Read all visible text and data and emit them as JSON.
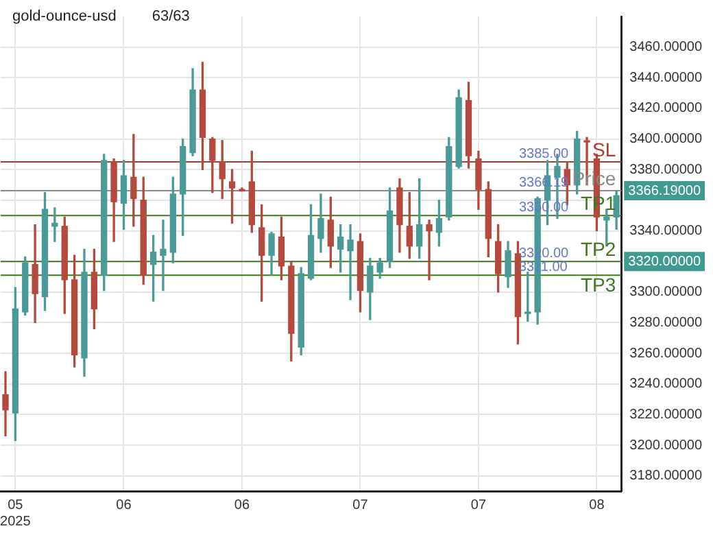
{
  "chart_data": {
    "type": "candlestick",
    "title": "gold-ounce-usd",
    "subtitle": "63/63",
    "categories": [
      null,
      "05\n2025",
      null,
      null,
      null,
      null,
      null,
      null,
      null,
      null,
      null,
      null,
      "06",
      null,
      null,
      null,
      null,
      null,
      null,
      null,
      null,
      null,
      null,
      null,
      "06",
      null,
      null,
      null,
      null,
      null,
      null,
      null,
      null,
      null,
      null,
      null,
      "07",
      null,
      null,
      null,
      null,
      null,
      null,
      null,
      null,
      null,
      null,
      null,
      "07",
      null,
      null,
      null,
      null,
      null,
      null,
      null,
      null,
      null,
      null,
      null,
      "08",
      null,
      null
    ],
    "ohlc": [
      [
        3233,
        3248,
        3206,
        3223
      ],
      [
        3221,
        3303,
        3203,
        3289
      ],
      [
        3287,
        3323,
        3285,
        3319
      ],
      [
        3318,
        3344,
        3280,
        3299
      ],
      [
        3297,
        3365,
        3288,
        3354
      ],
      [
        3343,
        3355,
        3333,
        3345
      ],
      [
        3343,
        3349,
        3286,
        3308
      ],
      [
        3308,
        3324,
        3251,
        3259
      ],
      [
        3257,
        3328,
        3245,
        3313
      ],
      [
        3313,
        3328,
        3276,
        3289
      ],
      [
        3311,
        3390,
        3301,
        3386
      ],
      [
        3385,
        3387,
        3333,
        3359
      ],
      [
        3358,
        3386,
        3341,
        3376
      ],
      [
        3375,
        3403,
        3343,
        3361
      ],
      [
        3360,
        3375,
        3305,
        3311
      ],
      [
        3318,
        3337,
        3294,
        3326
      ],
      [
        3324,
        3347,
        3301,
        3328
      ],
      [
        3326,
        3375,
        3319,
        3364
      ],
      [
        3364,
        3400,
        3337,
        3395
      ],
      [
        3391,
        3446,
        3389,
        3432
      ],
      [
        3432,
        3450,
        3380,
        3401
      ],
      [
        3400,
        3401,
        3365,
        3386
      ],
      [
        3385,
        3399,
        3361,
        3374
      ],
      [
        3372,
        3380,
        3345,
        3368
      ],
      [
        3367,
        3368,
        3366,
        3366
      ],
      [
        3372,
        3392,
        3339,
        3344
      ],
      [
        3342,
        3357,
        3294,
        3324
      ],
      [
        3324,
        3339,
        3311,
        3338
      ],
      [
        3336,
        3349,
        3308,
        3317
      ],
      [
        3317,
        3320,
        3255,
        3273
      ],
      [
        3264,
        3316,
        3259,
        3312
      ],
      [
        3309,
        3357,
        3308,
        3337
      ],
      [
        3335,
        3364,
        3326,
        3348
      ],
      [
        3347,
        3362,
        3316,
        3330
      ],
      [
        3328,
        3344,
        3313,
        3336
      ],
      [
        3327,
        3344,
        3295,
        3334
      ],
      [
        3333,
        3338,
        3287,
        3301
      ],
      [
        3300,
        3322,
        3282,
        3317
      ],
      [
        3313,
        3322,
        3309,
        3319
      ],
      [
        3320,
        3368,
        3316,
        3353
      ],
      [
        3368,
        3374,
        3326,
        3344
      ],
      [
        3343,
        3365,
        3322,
        3330
      ],
      [
        3330,
        3374,
        3322,
        3344
      ],
      [
        3344,
        3347,
        3308,
        3340
      ],
      [
        3339,
        3360,
        3330,
        3348
      ],
      [
        3349,
        3401,
        3347,
        3395
      ],
      [
        3382,
        3432,
        3381,
        3427
      ],
      [
        3425,
        3437,
        3381,
        3389
      ],
      [
        3387,
        3392,
        3354,
        3367
      ],
      [
        3367,
        3372,
        3323,
        3335
      ],
      [
        3333,
        3344,
        3300,
        3312
      ],
      [
        3310,
        3333,
        3303,
        3327
      ],
      [
        3325,
        3333,
        3266,
        3284
      ],
      [
        3286,
        3313,
        3281,
        3287
      ],
      [
        3287,
        3362,
        3279,
        3361
      ],
      [
        3360,
        3386,
        3344,
        3376
      ],
      [
        3375,
        3390,
        3348,
        3382
      ],
      [
        3380,
        3385,
        3357,
        3370
      ],
      [
        3370,
        3405,
        3364,
        3400
      ],
      [
        3398,
        3401,
        3370,
        3398
      ],
      [
        3387,
        3390,
        3340,
        3349
      ],
      [
        3347,
        3354,
        3330,
        3349
      ],
      [
        3349,
        3366,
        3341,
        3363
      ]
    ],
    "colors": [
      "#b4493d",
      "#4a9b97",
      "#4a9b97",
      "#b4493d",
      "#4a9b97",
      "#4a9b97",
      "#b4493d",
      "#b4493d",
      "#4a9b97",
      "#b4493d",
      "#4a9b97",
      "#b4493d",
      "#4a9b97",
      "#b4493d",
      "#b4493d",
      "#4a9b97",
      "#4a9b97",
      "#4a9b97",
      "#4a9b97",
      "#4a9b97",
      "#b4493d",
      "#b4493d",
      "#b4493d",
      "#b4493d",
      "#b4493d",
      "#b4493d",
      "#b4493d",
      "#4a9b97",
      "#b4493d",
      "#b4493d",
      "#4a9b97",
      "#4a9b97",
      "#4a9b97",
      "#b4493d",
      "#4a9b97",
      "#4a9b97",
      "#b4493d",
      "#4a9b97",
      "#4a9b97",
      "#4a9b97",
      "#b4493d",
      "#b4493d",
      "#4a9b97",
      "#b4493d",
      "#4a9b97",
      "#4a9b97",
      "#4a9b97",
      "#b4493d",
      "#b4493d",
      "#b4493d",
      "#b4493d",
      "#4a9b97",
      "#b4493d",
      "#4a9b97",
      "#4a9b97",
      "#4a9b97",
      "#4a9b97",
      "#b4493d",
      "#4a9b97",
      "#b4493d",
      "#b4493d",
      "#4a9b97",
      "#4a9b97"
    ],
    "ylim": [
      3170,
      3480
    ],
    "yticks": [
      {
        "value": 3180,
        "label": "3180.00000"
      },
      {
        "value": 3200,
        "label": "3200.00000"
      },
      {
        "value": 3220,
        "label": "3220.00000"
      },
      {
        "value": 3240,
        "label": "3240.00000"
      },
      {
        "value": 3260,
        "label": "3260.00000"
      },
      {
        "value": 3280,
        "label": "3280.00000"
      },
      {
        "value": 3300,
        "label": "3300.00000"
      },
      {
        "value": 3320,
        "label": "3320.00000"
      },
      {
        "value": 3340,
        "label": "3340.00000"
      },
      {
        "value": 3360,
        "label": null
      },
      {
        "value": 3366.19,
        "label": "3366.19000"
      },
      {
        "value": 3380,
        "label": "3380.00000"
      },
      {
        "value": 3400,
        "label": "3400.00000"
      },
      {
        "value": 3420,
        "label": "3420.00000"
      },
      {
        "value": 3440,
        "label": "3440.00000"
      },
      {
        "value": 3460,
        "label": "3460.00000"
      }
    ],
    "ref_lines": [
      {
        "axis": "y",
        "value": 3385,
        "label": "SL",
        "color": "#b03a2e"
      },
      {
        "axis": "y",
        "value": 3366.19,
        "label": "Price",
        "color": "#8a8a8a"
      },
      {
        "axis": "y",
        "value": 3350,
        "label": "TP1",
        "color": "#3d7a1e"
      },
      {
        "axis": "y",
        "value": 3320,
        "label": "TP2",
        "color": "#3d7a1e"
      },
      {
        "axis": "y",
        "value": 3311,
        "label": "TP3",
        "color": "#3d7a1e"
      }
    ],
    "annotations": [
      {
        "text": "3385.00",
        "y": 3385
      },
      {
        "text": "3366.19",
        "y": 3366.19
      },
      {
        "text": "3350.00",
        "y": 3350
      },
      {
        "text": "3320.00",
        "y": 3320
      },
      {
        "text": "3311.00",
        "y": 3311
      }
    ],
    "grid": true,
    "legend": false
  }
}
